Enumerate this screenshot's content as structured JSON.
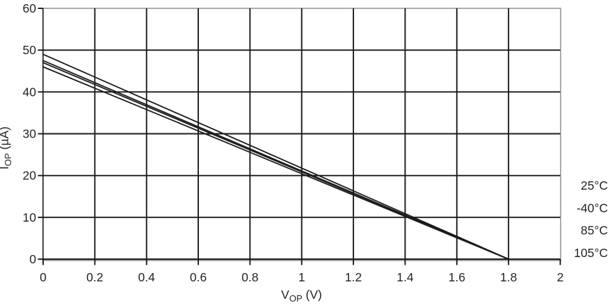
{
  "figure": {
    "background": "#ffffff",
    "text_color": "#262322",
    "grid_color": "#1c1a1a",
    "border_color": "#a3a3a3",
    "line_color": "#1c1a1a"
  },
  "chart_data": {
    "type": "line",
    "title": "",
    "xlabel": "VOP (V)",
    "ylabel": "IOP (µA)",
    "xlabel_parts": {
      "base": "V",
      "sub": "OP",
      "suffix": " (V)"
    },
    "ylabel_parts": {
      "base": "I",
      "sub": "OP",
      "suffix": " (µA)"
    },
    "xlim": [
      0,
      2
    ],
    "ylim": [
      0,
      60
    ],
    "x_ticks": [
      0,
      0.2,
      0.4,
      0.6,
      0.8,
      1,
      1.2,
      1.4,
      1.6,
      1.8,
      2
    ],
    "x_tick_labels": [
      "0",
      "0.2",
      "0.4",
      "0.6",
      "0.8",
      "1",
      "1.2",
      "1.4",
      "1.6",
      "1.8",
      "2"
    ],
    "y_ticks": [
      0,
      10,
      20,
      30,
      40,
      50,
      60
    ],
    "y_tick_labels": [
      "0",
      "10",
      "20",
      "30",
      "40",
      "50",
      "60"
    ],
    "grid": true,
    "legend_position": "right-outside",
    "series": [
      {
        "name": "25°C",
        "x": [
          0,
          1.8
        ],
        "y": [
          49,
          0
        ]
      },
      {
        "name": "-40°C",
        "x": [
          0,
          1.8
        ],
        "y": [
          47.5,
          0
        ]
      },
      {
        "name": "85°C",
        "x": [
          0,
          1.8
        ],
        "y": [
          47,
          0
        ]
      },
      {
        "name": "105°C",
        "x": [
          0,
          1.8
        ],
        "y": [
          46,
          0
        ]
      }
    ],
    "legend_items": [
      "25°C",
      "-40°C",
      "85°C",
      "105°C"
    ]
  }
}
